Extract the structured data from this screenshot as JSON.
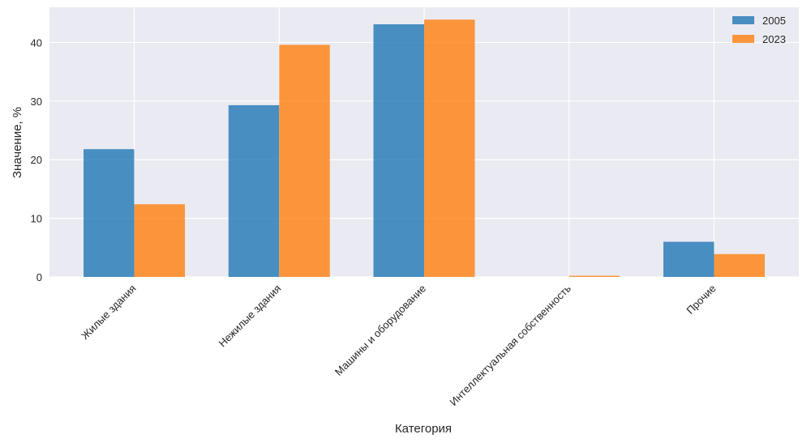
{
  "chart_data": {
    "type": "bar",
    "title": "",
    "xlabel": "Категория",
    "ylabel": "Значение, %",
    "ylim": [
      0,
      46
    ],
    "yticks": [
      0,
      10,
      20,
      30,
      40
    ],
    "categories": [
      "Жилые здания",
      "Нежилые здания",
      "Машины и оборудование",
      "Интеллектуальная собственность",
      "Прочие"
    ],
    "series": [
      {
        "name": "2005",
        "color": "#1f77b4",
        "values": [
          21.8,
          29.3,
          43.1,
          0.0,
          6.0
        ]
      },
      {
        "name": "2023",
        "color": "#ff7f0e",
        "values": [
          12.4,
          39.6,
          43.9,
          0.2,
          3.9
        ]
      }
    ],
    "grid": true,
    "legend_position": "top-right"
  }
}
